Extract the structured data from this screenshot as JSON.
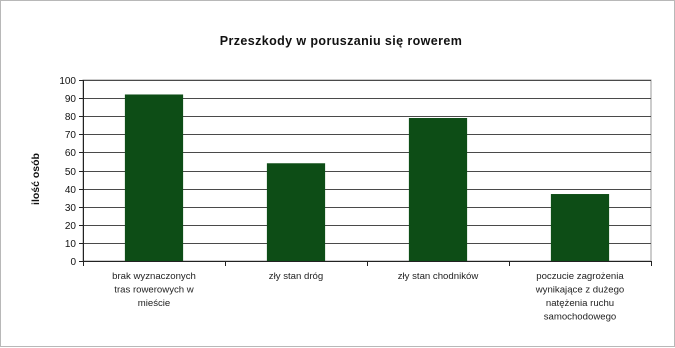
{
  "chart_data": {
    "type": "bar",
    "title": "Przeszkody w poruszaniu się rowerem",
    "xlabel": "",
    "ylabel": "ilość osób",
    "ylim": [
      0,
      100
    ],
    "yticks": [
      0,
      10,
      20,
      30,
      40,
      50,
      60,
      70,
      80,
      90,
      100
    ],
    "grid": true,
    "legend": "none",
    "bar_color": "#0d4d16",
    "plot_background": "#ffffff",
    "categories": [
      [
        "brak wyznaczonych",
        "tras rowerowych w",
        "mieście"
      ],
      [
        "zły stan dróg"
      ],
      [
        "zły stan chodników"
      ],
      [
        "poczucie zagrożenia",
        "wynikające z dużego",
        "natężenia ruchu",
        "samochodowego"
      ]
    ],
    "values": [
      92,
      54,
      79,
      37
    ]
  }
}
